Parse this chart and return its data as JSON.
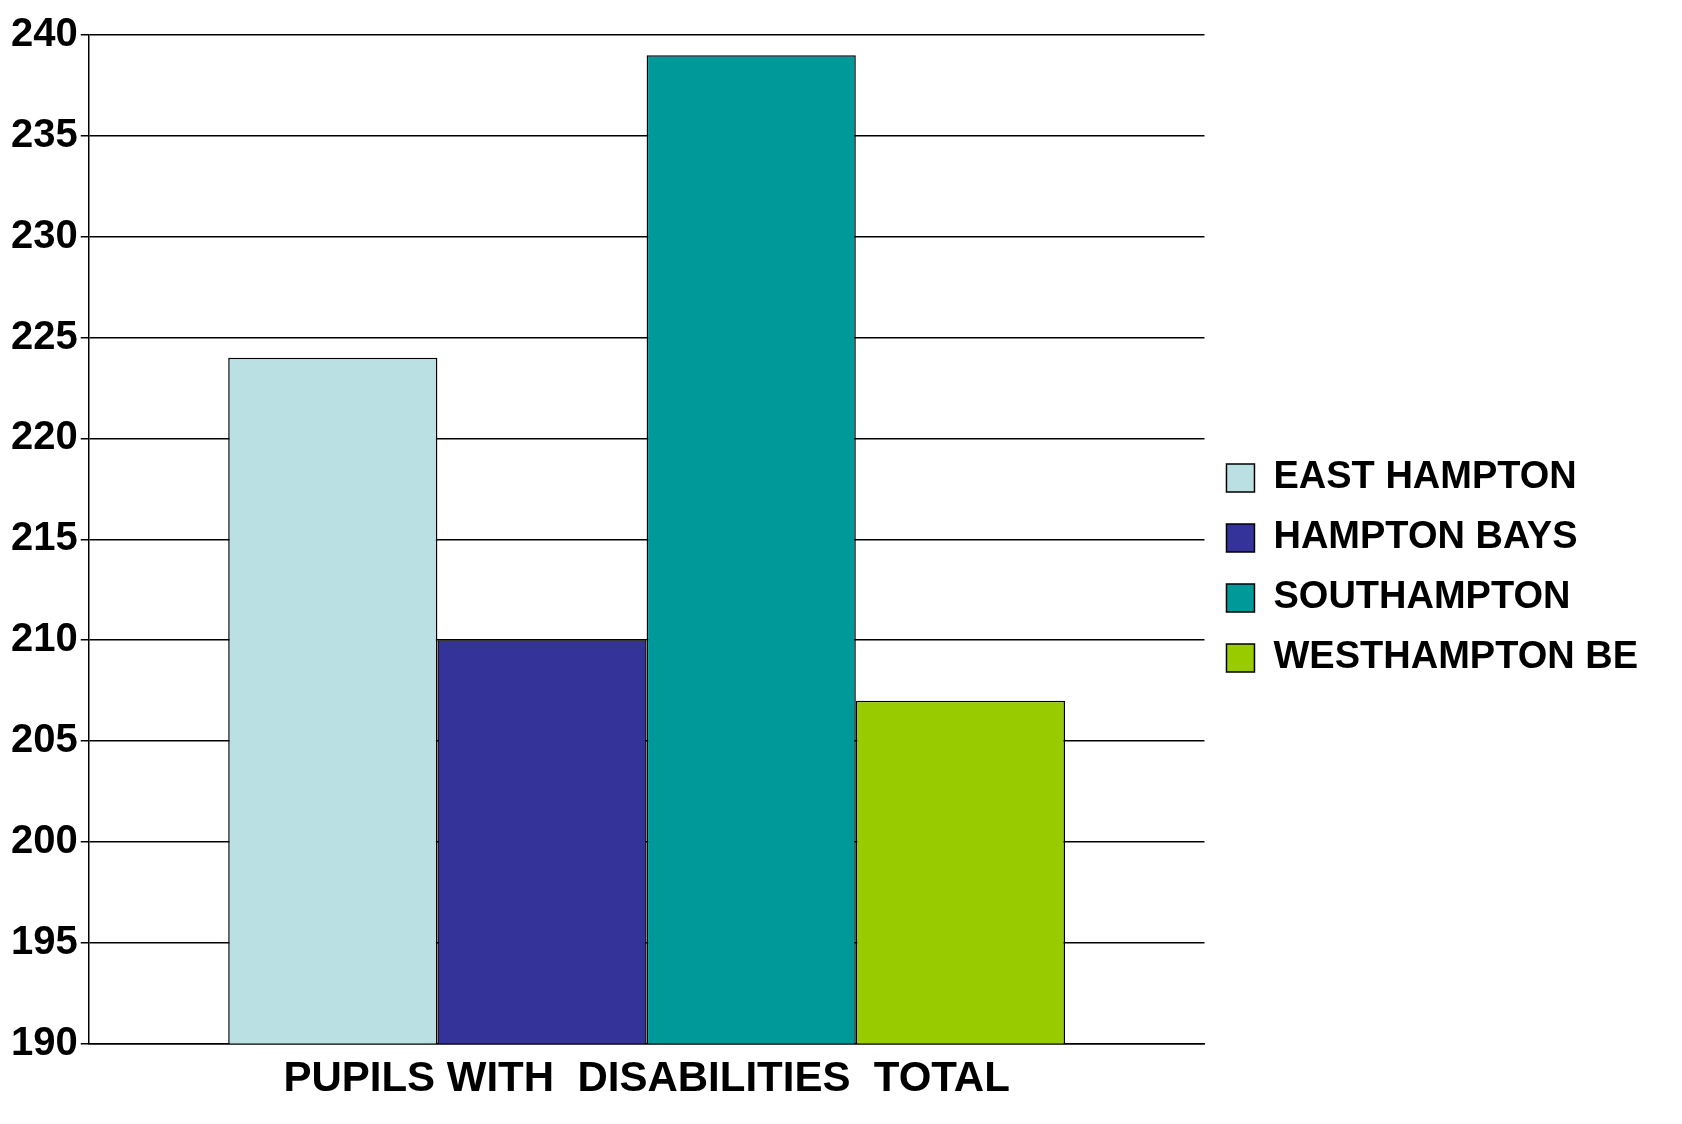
{
  "chart_data": {
    "type": "bar",
    "categories": [
      "PUPILS WITH  DISABILITIES  TOTAL"
    ],
    "series": [
      {
        "name": "EAST HAMPTON",
        "color": "#bae0e3",
        "values": [
          224
        ]
      },
      {
        "name": "HAMPTON BAYS",
        "color": "#333399",
        "values": [
          210
        ]
      },
      {
        "name": "SOUTHAMPTON",
        "color": "#009999",
        "values": [
          239
        ]
      },
      {
        "name": "WESTHAMPTON BE",
        "color": "#99cc00",
        "values": [
          207
        ]
      }
    ],
    "ylim": [
      190,
      240
    ],
    "yticks": [
      190,
      195,
      200,
      205,
      210,
      215,
      220,
      225,
      230,
      235,
      240
    ],
    "grid": "y",
    "legend": "right"
  }
}
